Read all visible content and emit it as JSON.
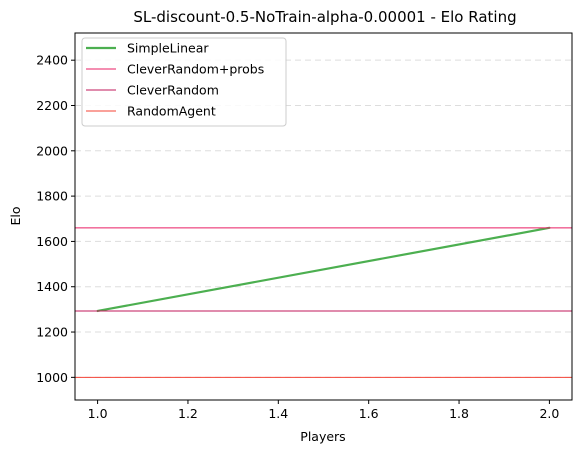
{
  "chart_data": {
    "type": "line",
    "title": "SL-discount-0.5-NoTrain-alpha-0.00001 - Elo Rating",
    "xlabel": "Players",
    "ylabel": "Elo",
    "xlim": [
      0.95,
      2.05
    ],
    "ylim": [
      900,
      2520
    ],
    "xticks": [
      "1.0",
      "1.2",
      "1.4",
      "1.6",
      "1.8",
      "2.0"
    ],
    "yticks": [
      "1000",
      "1200",
      "1400",
      "1600",
      "1800",
      "2000",
      "2200",
      "2400"
    ],
    "grid": "y-dashed",
    "legend_position": "upper-left",
    "series": [
      {
        "name": "SimpleLinear",
        "kind": "line",
        "color": "#4caf50",
        "x": [
          1.0,
          2.0
        ],
        "y": [
          1293,
          1660
        ]
      },
      {
        "name": "CleverRandom+probs",
        "kind": "hline",
        "color": "#e91e63",
        "y": 1660
      },
      {
        "name": "CleverRandom",
        "kind": "hline",
        "color": "#c2185b",
        "y": 1293
      },
      {
        "name": "RandomAgent",
        "kind": "hline",
        "color": "#f44336",
        "y": 1000
      }
    ]
  }
}
